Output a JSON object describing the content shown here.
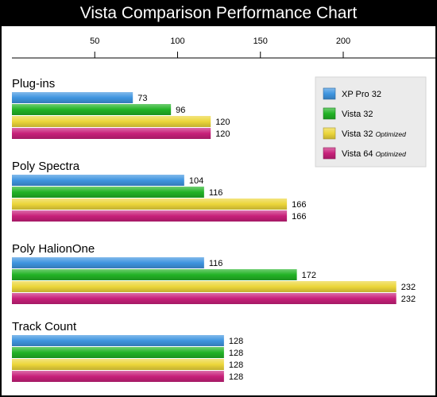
{
  "chart_data": {
    "type": "bar",
    "orientation": "horizontal",
    "title": "Vista Comparison Performance Chart",
    "xlim": [
      0,
      240
    ],
    "xticks": [
      50,
      100,
      150,
      200
    ],
    "categories": [
      "Plug-ins",
      "Poly Spectra",
      "Poly HalionOne",
      "Track Count"
    ],
    "series": [
      {
        "name": "XP Pro 32",
        "note": "",
        "color": "#3f95e0",
        "values": [
          73,
          104,
          116,
          128
        ]
      },
      {
        "name": "Vista 32",
        "note": "",
        "color": "#22b326",
        "values": [
          96,
          116,
          172,
          128
        ]
      },
      {
        "name": "Vista 32",
        "note": "Optimized",
        "color": "#ecd63a",
        "values": [
          120,
          166,
          232,
          128
        ]
      },
      {
        "name": "Vista 64",
        "note": "Optimized",
        "color": "#c8207a",
        "values": [
          120,
          166,
          232,
          128
        ]
      }
    ],
    "legend_position": "top-right"
  }
}
